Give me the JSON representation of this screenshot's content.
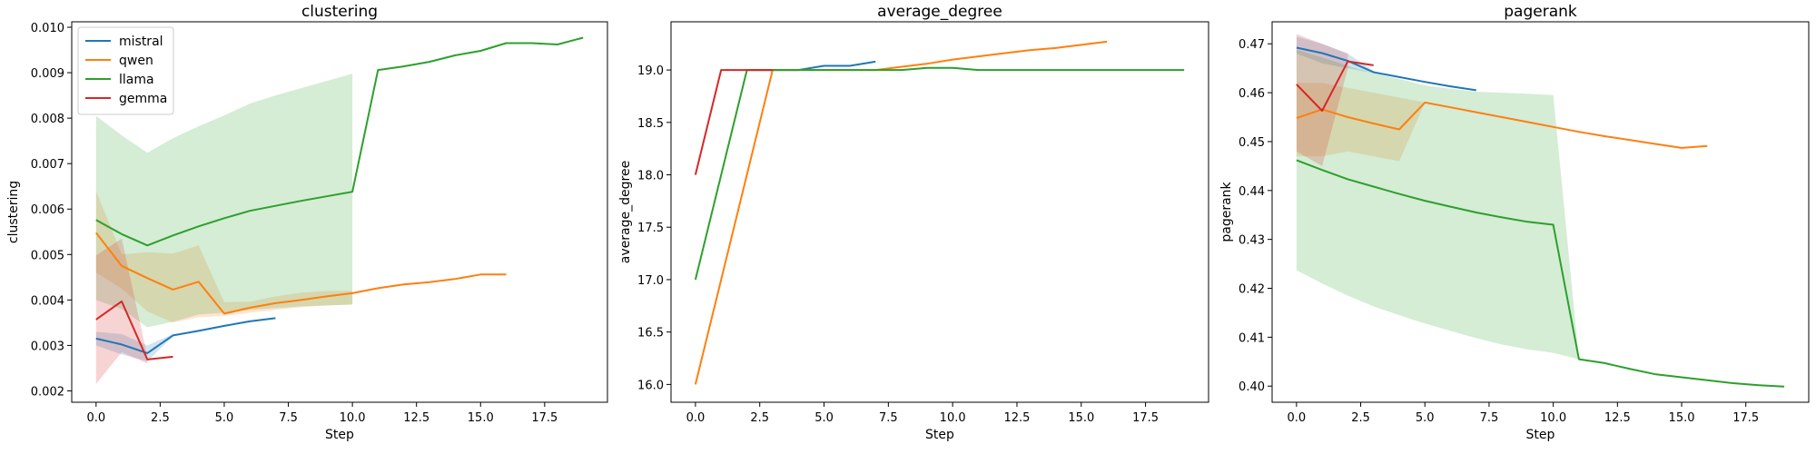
{
  "series_names": [
    "mistral",
    "qwen",
    "llama",
    "gemma"
  ],
  "colors": {
    "mistral": "#1f77b4",
    "qwen": "#ff7f0e",
    "llama": "#2ca02c",
    "gemma": "#d62728"
  },
  "chart_data": [
    {
      "type": "line",
      "title": "clustering",
      "xlabel": "Step",
      "ylabel": "clustering",
      "xlim": [
        -0.95,
        19.95
      ],
      "ylim": [
        0.00175,
        0.01012
      ],
      "xticks": [
        0.0,
        2.5,
        5.0,
        7.5,
        10.0,
        12.5,
        15.0,
        17.5
      ],
      "xtick_labels": [
        "0.0",
        "2.5",
        "5.0",
        "7.5",
        "10.0",
        "12.5",
        "15.0",
        "17.5"
      ],
      "yticks": [
        0.002,
        0.003,
        0.004,
        0.005,
        0.006,
        0.007,
        0.008,
        0.009,
        0.01
      ],
      "ytick_labels": [
        "0.002",
        "0.003",
        "0.004",
        "0.005",
        "0.006",
        "0.007",
        "0.008",
        "0.009",
        "0.010"
      ],
      "legend": "upper-left",
      "series": [
        {
          "name": "mistral",
          "x": [
            0,
            1,
            2,
            3,
            4,
            5,
            6,
            7
          ],
          "y": [
            0.00315,
            0.00302,
            0.00283,
            0.00322,
            0.00332,
            0.00343,
            0.00353,
            0.0036
          ],
          "band_x": [
            0,
            1,
            2,
            3
          ],
          "band_low": [
            0.003,
            0.0028,
            0.00265,
            0.0032
          ],
          "band_high": [
            0.0033,
            0.00325,
            0.003,
            0.00325
          ]
        },
        {
          "name": "qwen",
          "x": [
            0,
            1,
            2,
            3,
            4,
            5,
            6,
            7,
            8,
            9,
            10,
            11,
            12,
            13,
            14,
            15,
            16
          ],
          "y": [
            0.00548,
            0.00475,
            0.00448,
            0.00423,
            0.0044,
            0.0037,
            0.00383,
            0.00393,
            0.004,
            0.00408,
            0.00415,
            0.00426,
            0.00434,
            0.00439,
            0.00446,
            0.00456,
            0.00456
          ],
          "band_x": [
            0,
            1,
            2,
            3,
            4,
            5,
            6,
            7,
            8,
            9,
            10
          ],
          "band_low": [
            0.0046,
            0.00425,
            0.00375,
            0.0035,
            0.00362,
            0.00365,
            0.00372,
            0.00378,
            0.00384,
            0.00388,
            0.0039
          ],
          "band_high": [
            0.0064,
            0.005,
            0.00505,
            0.00502,
            0.0052,
            0.00395,
            0.00396,
            0.00408,
            0.00416,
            0.0042,
            0.0042
          ]
        },
        {
          "name": "llama",
          "x": [
            0,
            1,
            2,
            3,
            4,
            5,
            6,
            7,
            8,
            9,
            10,
            11,
            12,
            13,
            14,
            15,
            16,
            17,
            18,
            19
          ],
          "y": [
            0.00576,
            0.00545,
            0.0052,
            0.00542,
            0.00562,
            0.0058,
            0.00596,
            0.00607,
            0.00618,
            0.00628,
            0.00638,
            0.00906,
            0.00914,
            0.00924,
            0.00938,
            0.00948,
            0.00965,
            0.00965,
            0.00962,
            0.00977
          ],
          "band_x": [
            0,
            1,
            2,
            3,
            4,
            5,
            6,
            7,
            8,
            9,
            10
          ],
          "band_low": [
            0.004,
            0.0038,
            0.0034,
            0.00352,
            0.00368,
            0.00372,
            0.00378,
            0.00382,
            0.00386,
            0.00388,
            0.0039
          ],
          "band_high": [
            0.00805,
            0.00762,
            0.00724,
            0.00756,
            0.00782,
            0.00806,
            0.00832,
            0.0085,
            0.00866,
            0.00882,
            0.00898
          ]
        },
        {
          "name": "gemma",
          "x": [
            0,
            1,
            2,
            3
          ],
          "y": [
            0.00357,
            0.00397,
            0.00269,
            0.00275
          ],
          "band_x": [
            0,
            1,
            2
          ],
          "band_low": [
            0.00215,
            0.00285,
            0.0026
          ],
          "band_high": [
            0.00498,
            0.00535,
            0.00275
          ]
        }
      ]
    },
    {
      "type": "line",
      "title": "average_degree",
      "xlabel": "Step",
      "ylabel": "average_degree",
      "xlim": [
        -0.95,
        19.95
      ],
      "ylim": [
        15.83,
        19.46
      ],
      "xticks": [
        0.0,
        2.5,
        5.0,
        7.5,
        10.0,
        12.5,
        15.0,
        17.5
      ],
      "xtick_labels": [
        "0.0",
        "2.5",
        "5.0",
        "7.5",
        "10.0",
        "12.5",
        "15.0",
        "17.5"
      ],
      "yticks": [
        16.0,
        16.5,
        17.0,
        17.5,
        18.0,
        18.5,
        19.0
      ],
      "ytick_labels": [
        "16.0",
        "16.5",
        "17.0",
        "17.5",
        "18.0",
        "18.5",
        "19.0"
      ],
      "series": [
        {
          "name": "mistral",
          "x": [
            2,
            3,
            4,
            5,
            6,
            7
          ],
          "y": [
            19.0,
            19.0,
            19.0,
            19.04,
            19.04,
            19.08
          ]
        },
        {
          "name": "qwen",
          "x": [
            0,
            3,
            4,
            5,
            6,
            7,
            8,
            9,
            10,
            11,
            12,
            13,
            14,
            15,
            16
          ],
          "y": [
            16.0,
            19.0,
            19.0,
            19.0,
            19.0,
            19.0,
            19.03,
            19.06,
            19.1,
            19.13,
            19.16,
            19.19,
            19.21,
            19.24,
            19.27
          ]
        },
        {
          "name": "llama",
          "x": [
            0,
            2,
            3,
            4,
            5,
            6,
            7,
            8,
            9,
            10,
            11,
            12,
            13,
            14,
            15,
            16,
            17,
            18,
            19
          ],
          "y": [
            17.0,
            19.0,
            19.0,
            19.0,
            19.0,
            19.0,
            19.0,
            19.0,
            19.02,
            19.02,
            19.0,
            19.0,
            19.0,
            19.0,
            19.0,
            19.0,
            19.0,
            19.0,
            19.0
          ]
        },
        {
          "name": "gemma",
          "x": [
            0,
            1,
            2,
            3
          ],
          "y": [
            18.0,
            19.0,
            19.0,
            19.0
          ]
        }
      ]
    },
    {
      "type": "line",
      "title": "pagerank",
      "xlabel": "Step",
      "ylabel": "pagerank",
      "xlim": [
        -0.95,
        19.95
      ],
      "ylim": [
        0.3967,
        0.4745
      ],
      "xticks": [
        0.0,
        2.5,
        5.0,
        7.5,
        10.0,
        12.5,
        15.0,
        17.5
      ],
      "xtick_labels": [
        "0.0",
        "2.5",
        "5.0",
        "7.5",
        "10.0",
        "12.5",
        "15.0",
        "17.5"
      ],
      "yticks": [
        0.4,
        0.41,
        0.42,
        0.43,
        0.44,
        0.45,
        0.46,
        0.47
      ],
      "ytick_labels": [
        "0.40",
        "0.41",
        "0.42",
        "0.43",
        "0.44",
        "0.45",
        "0.46",
        "0.47"
      ],
      "series": [
        {
          "name": "mistral",
          "x": [
            0,
            1,
            2,
            3,
            4,
            5,
            6,
            7
          ],
          "y": [
            0.4692,
            0.4681,
            0.4665,
            0.4642,
            0.4632,
            0.4622,
            0.4613,
            0.4605
          ],
          "band_x": [
            0,
            1,
            2,
            3
          ],
          "band_low": [
            0.468,
            0.466,
            0.465,
            0.464
          ],
          "band_high": [
            0.4715,
            0.47,
            0.468,
            0.4645
          ]
        },
        {
          "name": "qwen",
          "x": [
            0,
            1,
            2,
            3,
            4,
            5,
            6,
            7,
            8,
            9,
            10,
            11,
            12,
            13,
            14,
            15,
            16
          ],
          "y": [
            0.4548,
            0.4566,
            0.455,
            0.4537,
            0.4525,
            0.458,
            0.457,
            0.456,
            0.455,
            0.454,
            0.453,
            0.452,
            0.4511,
            0.4503,
            0.4495,
            0.4487,
            0.4491
          ],
          "band_x": [
            0,
            1,
            2,
            3,
            4,
            5
          ],
          "band_low": [
            0.447,
            0.447,
            0.448,
            0.447,
            0.446,
            0.458
          ],
          "band_high": [
            0.462,
            0.462,
            0.461,
            0.46,
            0.459,
            0.458
          ]
        },
        {
          "name": "llama",
          "x": [
            0,
            1,
            2,
            3,
            4,
            5,
            6,
            7,
            8,
            9,
            10,
            11,
            12,
            13,
            14,
            15,
            16,
            17,
            18,
            19
          ],
          "y": [
            0.4462,
            0.4442,
            0.4423,
            0.4408,
            0.4393,
            0.4379,
            0.4367,
            0.4355,
            0.4345,
            0.4336,
            0.433,
            0.4055,
            0.4047,
            0.4035,
            0.4024,
            0.4018,
            0.4012,
            0.4006,
            0.4002,
            0.3999
          ],
          "band_x": [
            0,
            1,
            2,
            3,
            4,
            5,
            6,
            7,
            8,
            9,
            10,
            11
          ],
          "band_low": [
            0.4237,
            0.421,
            0.4185,
            0.4163,
            0.4145,
            0.4128,
            0.4113,
            0.4098,
            0.4085,
            0.4075,
            0.4068,
            0.4055
          ],
          "band_high": [
            0.4688,
            0.4672,
            0.4655,
            0.464,
            0.4628,
            0.4615,
            0.4608,
            0.4602,
            0.46,
            0.4598,
            0.4595,
            0.4055
          ]
        },
        {
          "name": "gemma",
          "x": [
            0,
            1,
            2,
            3
          ],
          "y": [
            0.4617,
            0.4563,
            0.4664,
            0.4656
          ],
          "band_x": [
            0,
            1,
            2
          ],
          "band_low": [
            0.448,
            0.445,
            0.465
          ],
          "band_high": [
            0.472,
            0.47,
            0.468
          ]
        }
      ]
    }
  ]
}
